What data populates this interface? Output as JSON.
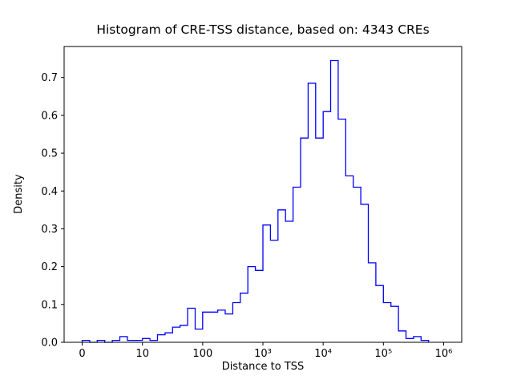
{
  "chart_data": {
    "type": "histogram_step",
    "title": "Histogram of CRE-TSS distance, based on: 4343 CREs",
    "xlabel": "Distance to TSS",
    "ylabel": "Density",
    "sample_size": 4343,
    "line_color": "#0000ff",
    "background_color": "#ffffff",
    "grid": false,
    "legend": "none",
    "x_scale": "symlog (decade units: u=0 labeled 0, then one unit per decade up to 10^6)",
    "xlim_u": [
      -0.3,
      6.3
    ],
    "ylim": [
      0,
      0.782
    ],
    "x_ticks": [
      {
        "u": 0,
        "label": "0"
      },
      {
        "u": 1,
        "label": "10"
      },
      {
        "u": 2,
        "label": "100"
      },
      {
        "u": 3,
        "label": "10³"
      },
      {
        "u": 4,
        "label": "10⁴"
      },
      {
        "u": 5,
        "label": "10⁵"
      },
      {
        "u": 6,
        "label": "10⁶"
      }
    ],
    "y_ticks": [
      {
        "v": 0.0,
        "label": "0.0"
      },
      {
        "v": 0.1,
        "label": "0.1"
      },
      {
        "v": 0.2,
        "label": "0.2"
      },
      {
        "v": 0.3,
        "label": "0.3"
      },
      {
        "v": 0.4,
        "label": "0.4"
      },
      {
        "v": 0.5,
        "label": "0.5"
      },
      {
        "v": 0.6,
        "label": "0.6"
      },
      {
        "v": 0.7,
        "label": "0.7"
      }
    ],
    "bins": {
      "u_edges": [
        0,
        0.125,
        0.25,
        0.375,
        0.5,
        0.625,
        0.75,
        0.875,
        1,
        1.125,
        1.25,
        1.375,
        1.5,
        1.625,
        1.75,
        1.875,
        2,
        2.125,
        2.25,
        2.375,
        2.5,
        2.625,
        2.75,
        2.875,
        3,
        3.125,
        3.25,
        3.375,
        3.5,
        3.625,
        3.75,
        3.875,
        4,
        4.125,
        4.25,
        4.375,
        4.5,
        4.625,
        4.75,
        4.875,
        5,
        5.125,
        5.25,
        5.375,
        5.5,
        5.625,
        5.75
      ],
      "densities": [
        0.005,
        0,
        0.005,
        0,
        0.005,
        0.015,
        0.005,
        0.005,
        0.01,
        0.005,
        0.02,
        0.025,
        0.04,
        0.045,
        0.09,
        0.035,
        0.08,
        0.08,
        0.085,
        0.075,
        0.105,
        0.13,
        0.2,
        0.19,
        0.31,
        0.27,
        0.35,
        0.32,
        0.41,
        0.54,
        0.685,
        0.54,
        0.61,
        0.745,
        0.59,
        0.44,
        0.41,
        0.365,
        0.21,
        0.15,
        0.105,
        0.095,
        0.03,
        0.01,
        0.015,
        0.005
      ]
    }
  }
}
